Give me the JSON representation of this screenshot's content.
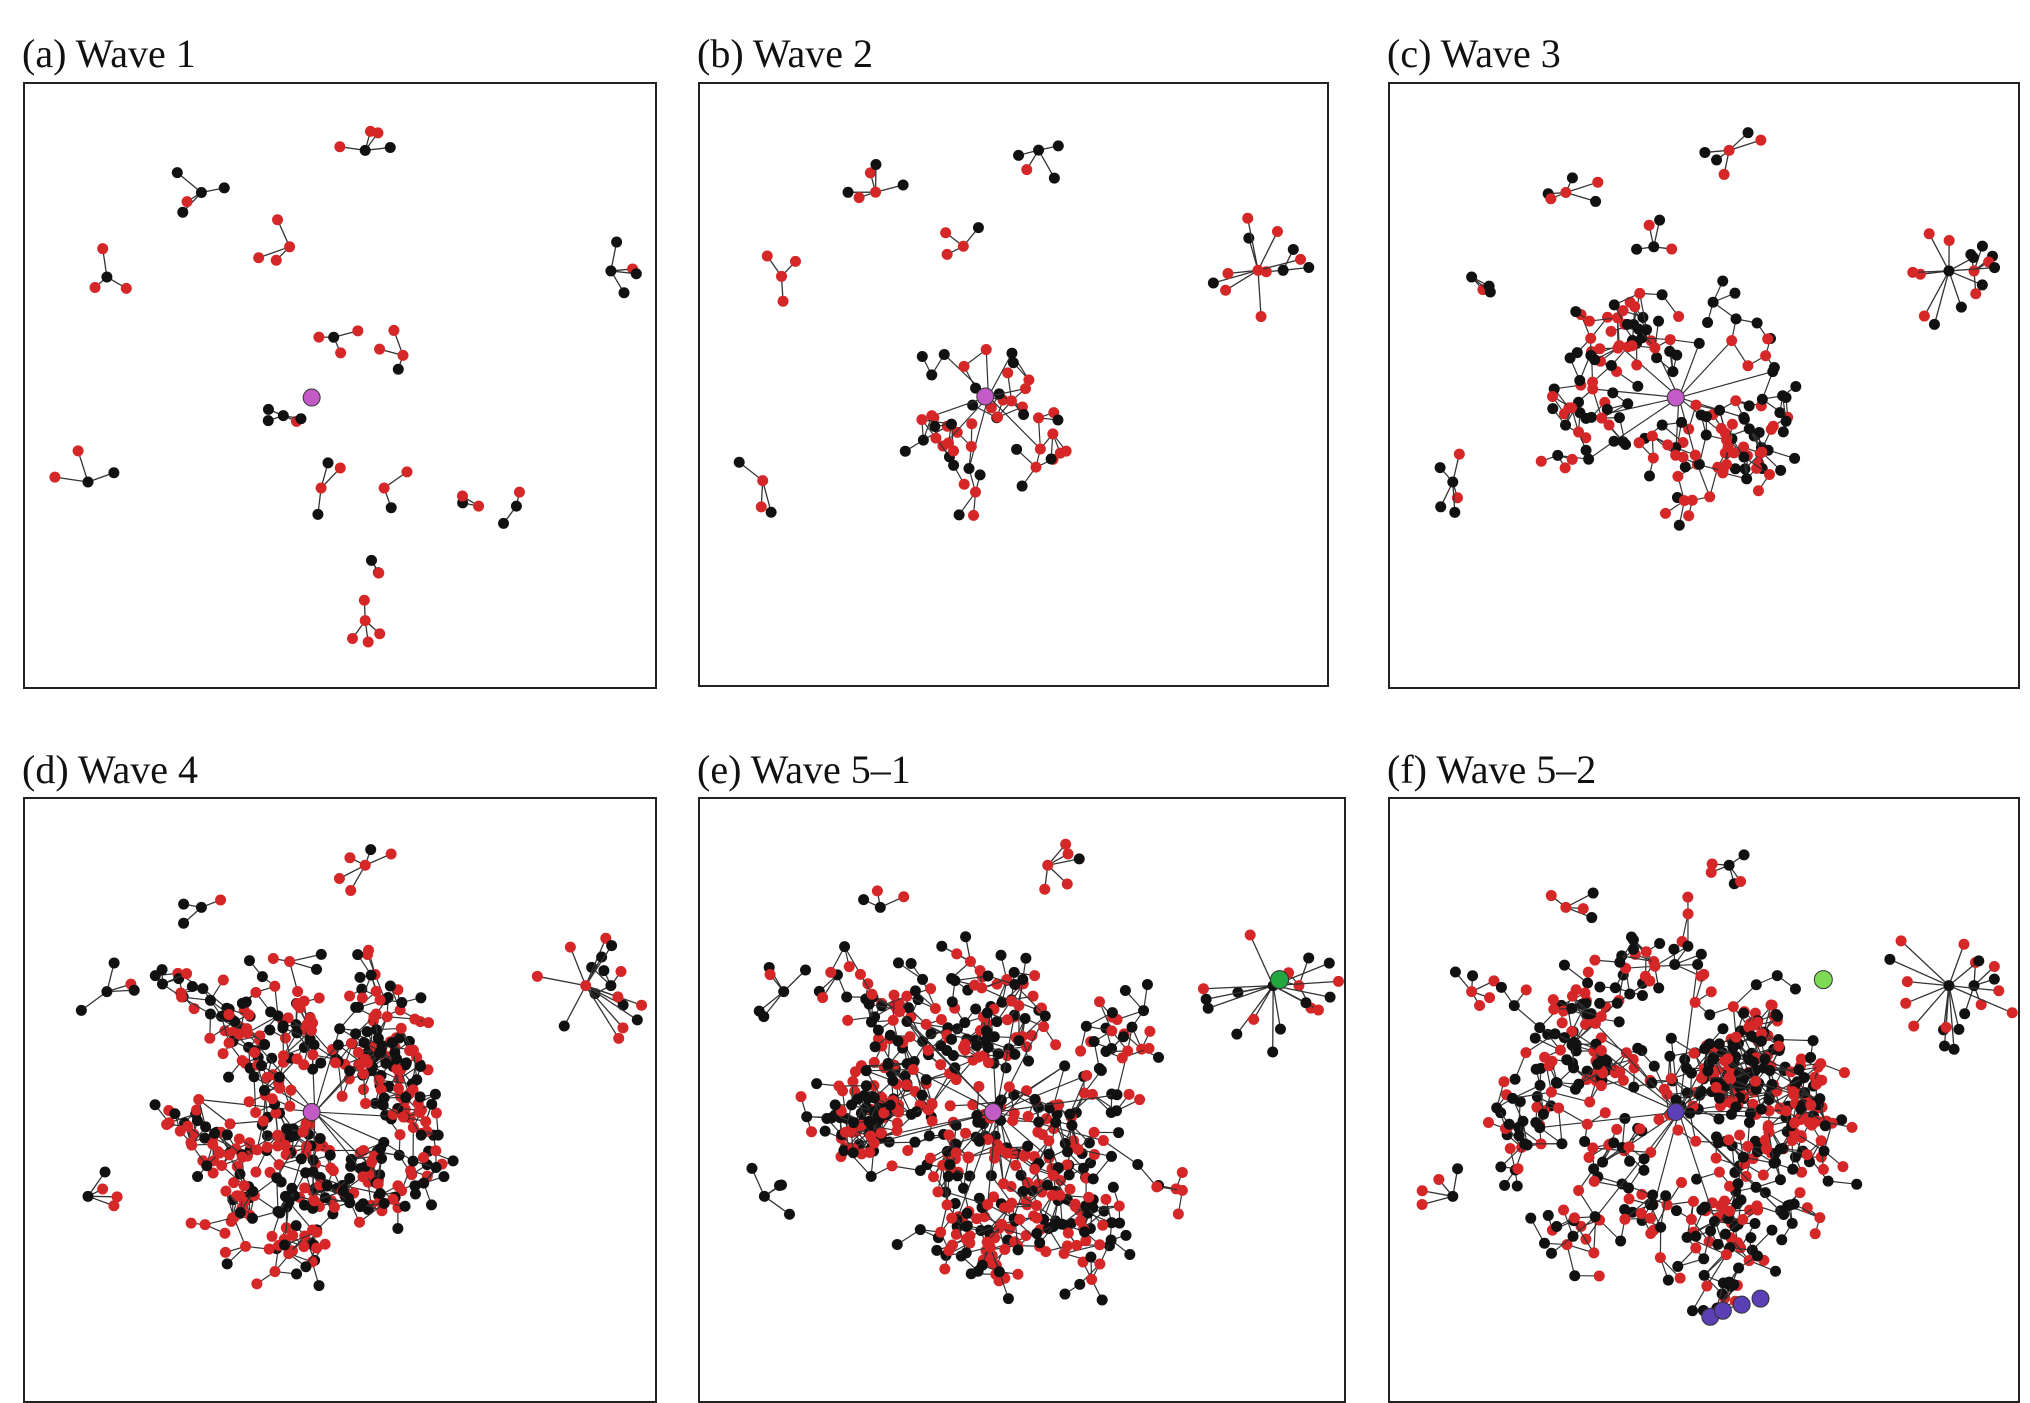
{
  "colors": {
    "edge": "#333333",
    "node_black": "#111111",
    "node_red": "#d62728",
    "seed_magenta": "#c35bc7",
    "hub_green_dark": "#22a640",
    "hub_green_light": "#7ed957",
    "path_purple": "#5b3fb5",
    "frame": "#222222"
  },
  "panels": [
    {
      "label": "(a) Wave 1",
      "wave": 1,
      "special": "seed"
    },
    {
      "label": "(b) Wave 2",
      "wave": 2,
      "special": "seed"
    },
    {
      "label": "(c) Wave 3",
      "wave": 3,
      "special": "seed"
    },
    {
      "label": "(d) Wave 4",
      "wave": 4,
      "special": "seed"
    },
    {
      "label": "(e) Wave 5–1",
      "wave": 5,
      "special": "seed-and-hub"
    },
    {
      "label": "(f) Wave 5–2",
      "wave": 5,
      "special": "path-and-hub"
    }
  ]
}
